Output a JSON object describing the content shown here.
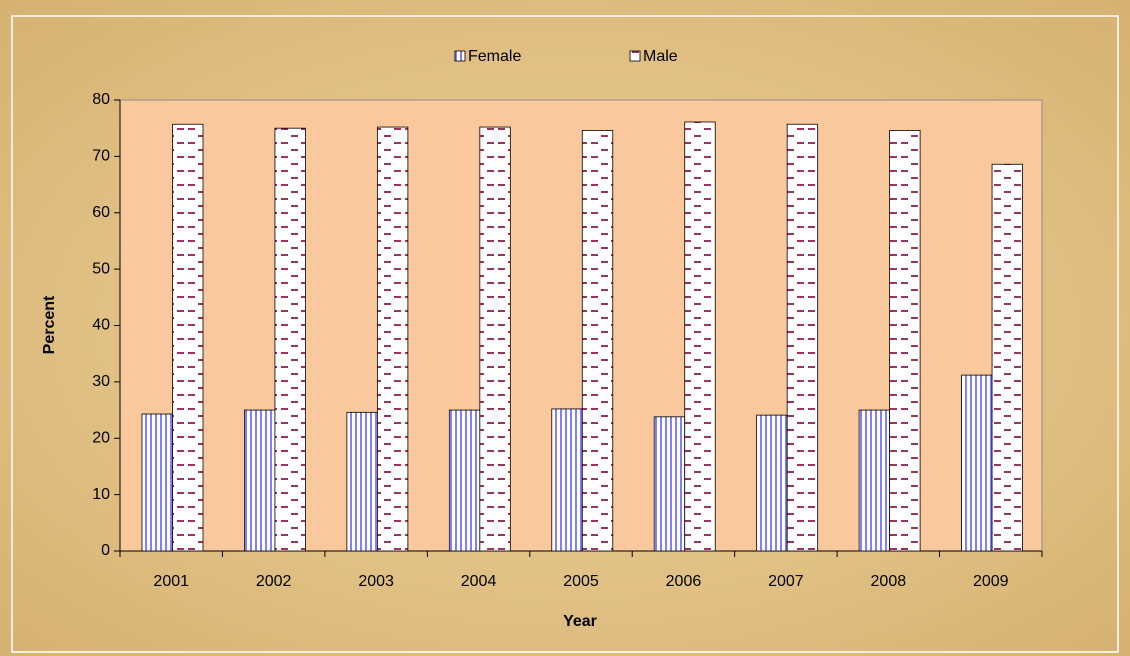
{
  "chart_data": {
    "type": "bar",
    "categories": [
      "2001",
      "2002",
      "2003",
      "2004",
      "2005",
      "2006",
      "2007",
      "2008",
      "2009"
    ],
    "series": [
      {
        "name": "Female",
        "color": "#8080ff",
        "values": [
          24.3,
          25.0,
          24.6,
          25.0,
          25.2,
          23.8,
          24.1,
          25.0,
          31.2
        ]
      },
      {
        "name": "Male",
        "color": "#993366",
        "values": [
          75.7,
          75.0,
          75.2,
          75.2,
          74.6,
          76.1,
          75.7,
          74.6,
          68.6
        ]
      }
    ],
    "xlabel": "Year",
    "ylabel": "Percent",
    "ylim": [
      0,
      80
    ],
    "yticks": [
      0,
      10,
      20,
      30,
      40,
      50,
      60,
      70,
      80
    ],
    "legend": "top"
  }
}
